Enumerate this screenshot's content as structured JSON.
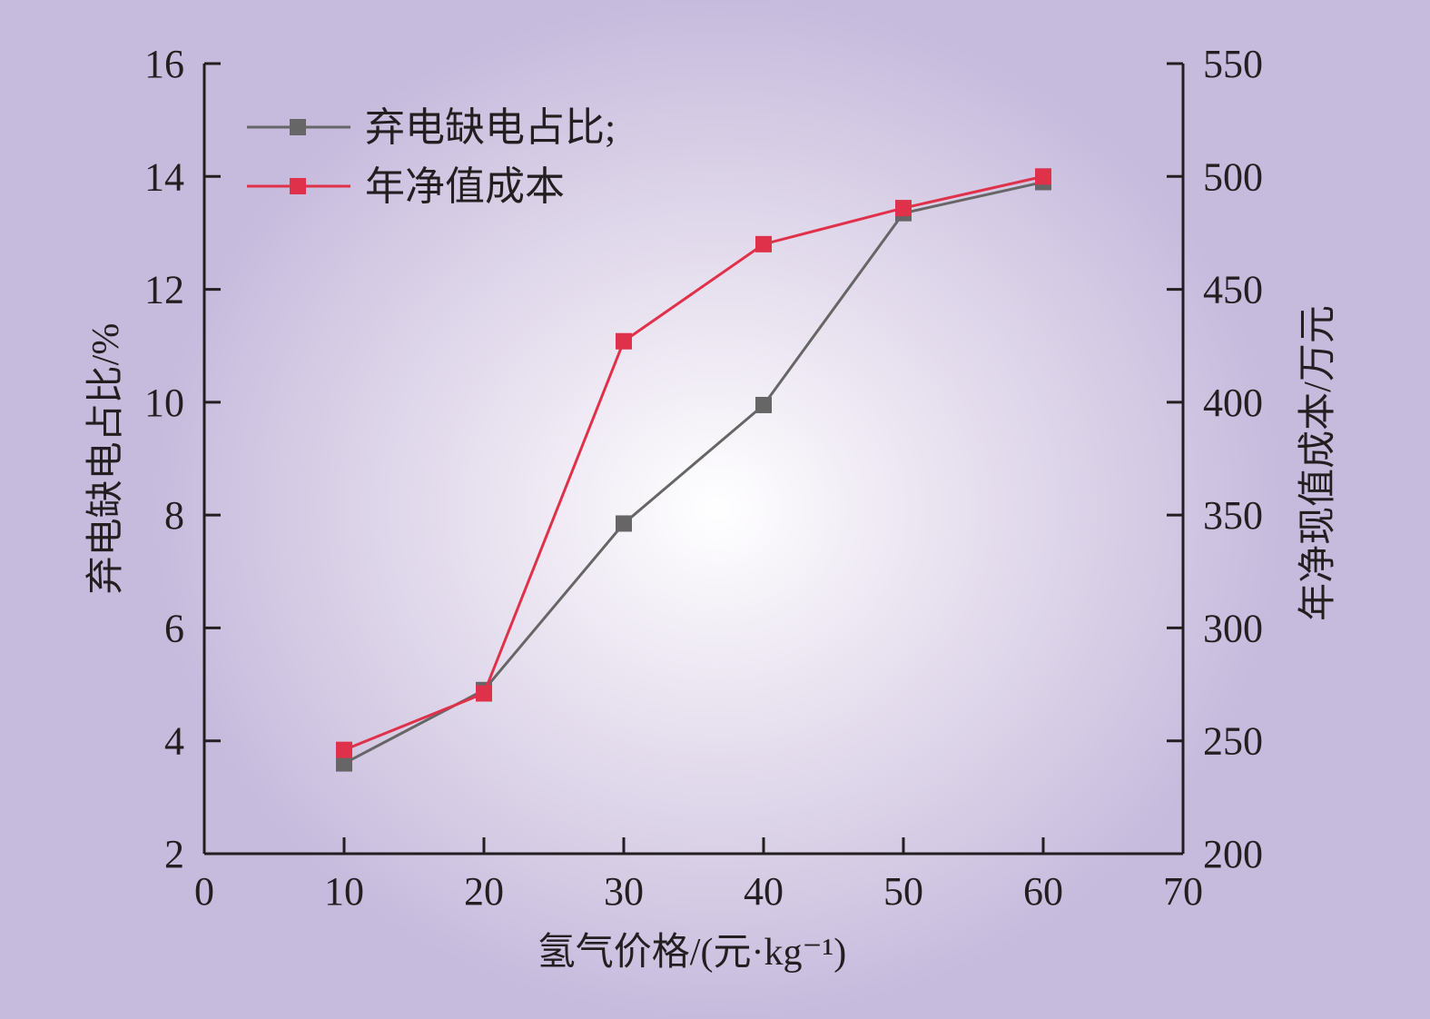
{
  "chart_data": {
    "type": "line",
    "x": [
      10,
      20,
      30,
      40,
      50,
      60
    ],
    "xlim": [
      0,
      70
    ],
    "xticks": [
      "0",
      "10",
      "20",
      "30",
      "40",
      "50",
      "60",
      "70"
    ],
    "ylim": [
      2,
      16
    ],
    "yticks_left": [
      "2",
      "4",
      "6",
      "8",
      "10",
      "12",
      "14",
      "16"
    ],
    "y2lim": [
      200,
      550
    ],
    "yticks_right": [
      "200",
      "250",
      "300",
      "350",
      "400",
      "450",
      "500",
      "550"
    ],
    "xlabel": "氢气价格/(元·kg⁻¹)",
    "ylabel": "弃电缺电占比/%",
    "y2label": "年净现值成本/万元",
    "legend_position": "top-left",
    "series": [
      {
        "name": "弃电缺电占比;",
        "axis": "left",
        "color": "#666666",
        "values": [
          3.6,
          4.9,
          7.85,
          9.95,
          13.35,
          13.9
        ]
      },
      {
        "name": "年净值成本",
        "axis": "right",
        "color": "#e0314a",
        "values": [
          246,
          271,
          427,
          470,
          486,
          500
        ]
      }
    ]
  }
}
